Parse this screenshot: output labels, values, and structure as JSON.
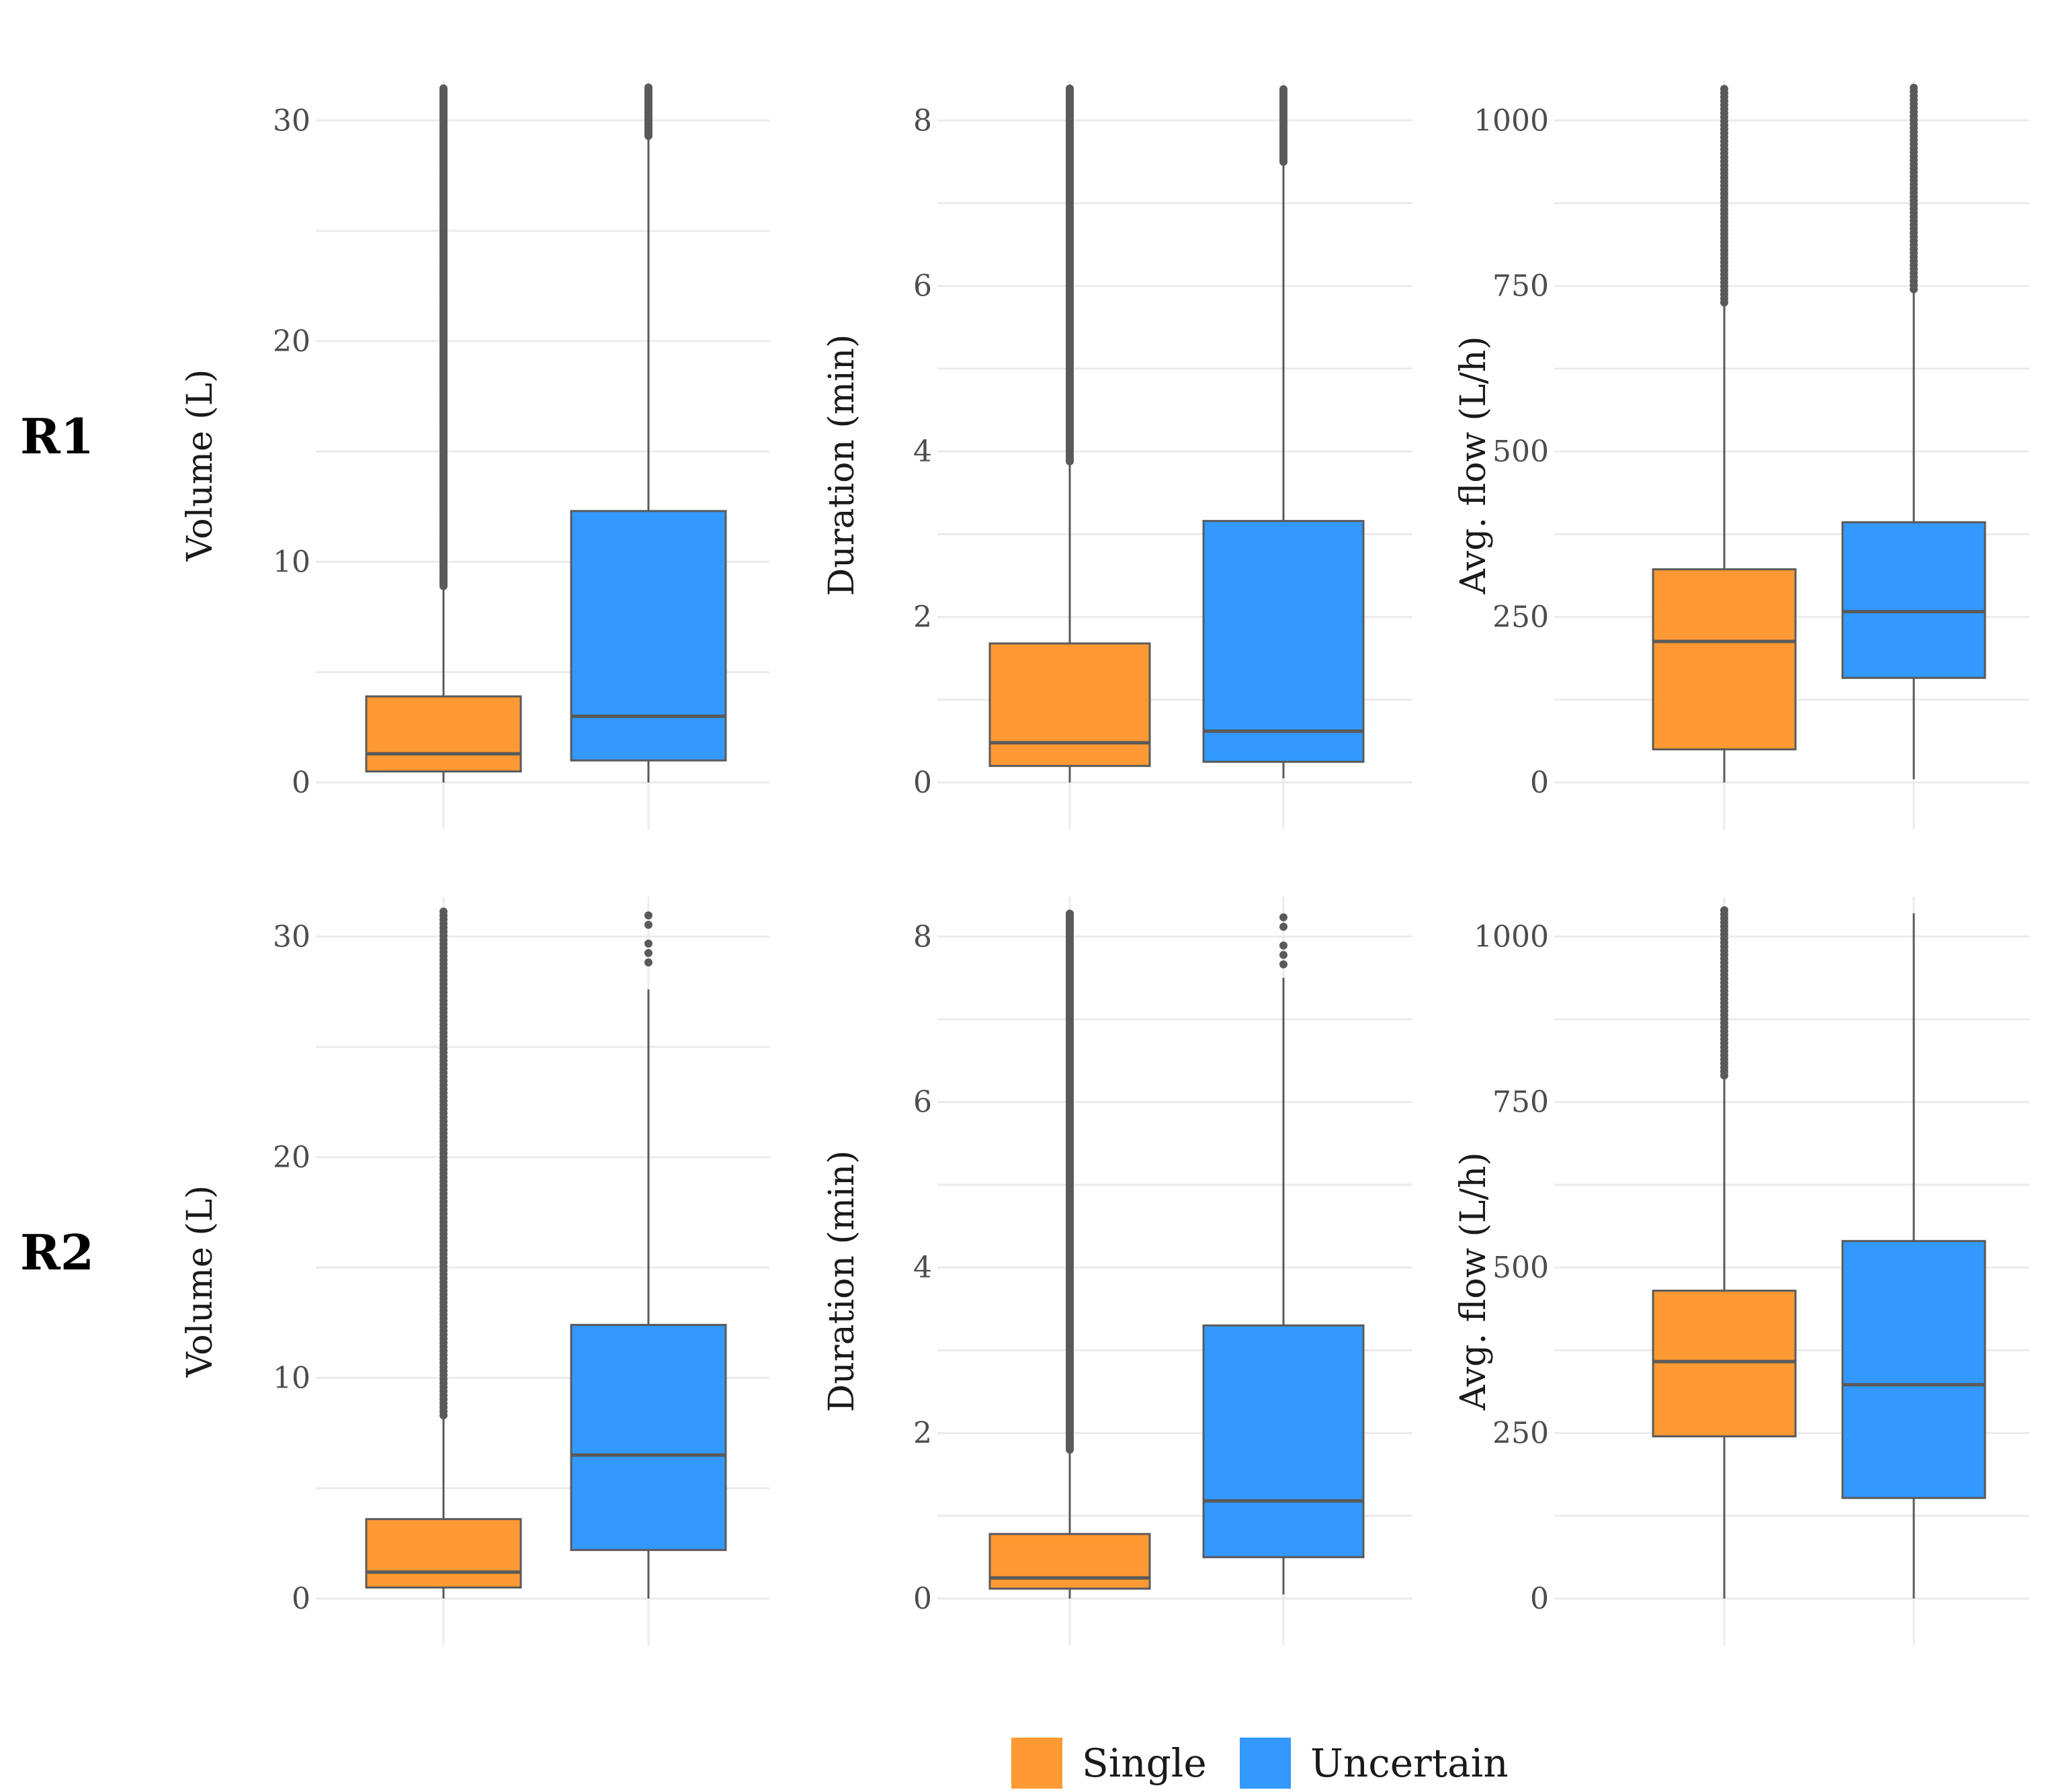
{
  "chart_data": {
    "type": "box",
    "row_labels": [
      "R1",
      "R2"
    ],
    "groups": [
      "Single",
      "Uncertain"
    ],
    "colors": {
      "Single": "#ff9933",
      "Uncertain": "#3399ff"
    },
    "legend": {
      "position": "bottom-center",
      "entries": [
        {
          "name": "Single",
          "color": "#ff9933"
        },
        {
          "name": "Uncertain",
          "color": "#3399ff"
        }
      ]
    },
    "panels": [
      {
        "row": "R1",
        "ylabel": "Volume (L)",
        "ylim": [
          0,
          31.5
        ],
        "ticks": [
          0,
          10,
          20,
          30
        ],
        "boxes": [
          {
            "group": "Single",
            "lower_whisker": 0,
            "q1": 0.5,
            "median": 1.3,
            "q3": 3.9,
            "upper_whisker": 8.9,
            "outliers_from": 8.9,
            "outliers_to": 31.5,
            "outlier_density": "dense"
          },
          {
            "group": "Uncertain",
            "lower_whisker": 0,
            "q1": 1.0,
            "median": 3.0,
            "q3": 12.3,
            "upper_whisker": 29.3,
            "outliers_from": 29.3,
            "outliers_to": 31.5,
            "outlier_density": "dense"
          }
        ]
      },
      {
        "row": "R1",
        "ylabel": "Duration (min)",
        "ylim": [
          0,
          8.4
        ],
        "ticks": [
          0,
          2,
          4,
          6,
          8
        ],
        "boxes": [
          {
            "group": "Single",
            "lower_whisker": 0,
            "q1": 0.2,
            "median": 0.48,
            "q3": 1.68,
            "upper_whisker": 3.88,
            "outliers_from": 3.88,
            "outliers_to": 8.4,
            "outlier_density": "dense"
          },
          {
            "group": "Uncertain",
            "lower_whisker": 0.05,
            "q1": 0.25,
            "median": 0.62,
            "q3": 3.16,
            "upper_whisker": 7.5,
            "outliers_from": 7.5,
            "outliers_to": 8.4,
            "outlier_density": "dense"
          }
        ]
      },
      {
        "row": "R1",
        "ylabel": "Avg. flow (L/h)",
        "ylim": [
          0,
          1050
        ],
        "ticks": [
          0,
          250,
          500,
          750,
          1000
        ],
        "boxes": [
          {
            "group": "Single",
            "lower_whisker": 0,
            "q1": 50,
            "median": 213,
            "q3": 322,
            "upper_whisker": 725,
            "outliers_from": 725,
            "outliers_to": 1050,
            "outlier_density": "medium"
          },
          {
            "group": "Uncertain",
            "lower_whisker": 5,
            "q1": 158,
            "median": 258,
            "q3": 393,
            "upper_whisker": 745,
            "outliers_from": 745,
            "outliers_to": 1050,
            "outlier_density": "medium"
          }
        ]
      },
      {
        "row": "R2",
        "ylabel": "Volume (L)",
        "ylim": [
          0,
          31.5
        ],
        "ticks": [
          0,
          10,
          20,
          30
        ],
        "boxes": [
          {
            "group": "Single",
            "lower_whisker": 0,
            "q1": 0.5,
            "median": 1.2,
            "q3": 3.6,
            "upper_whisker": 8.3,
            "outliers_from": 8.3,
            "outliers_to": 31.2,
            "outlier_density": "medium"
          },
          {
            "group": "Uncertain",
            "lower_whisker": 0,
            "q1": 2.2,
            "median": 6.5,
            "q3": 12.4,
            "upper_whisker": 27.6,
            "outliers_from": 28.4,
            "outliers_to": 31.2,
            "outlier_density": "sparse"
          }
        ]
      },
      {
        "row": "R2",
        "ylabel": "Duration (min)",
        "ylim": [
          0,
          8.4
        ],
        "ticks": [
          0,
          2,
          4,
          6,
          8
        ],
        "boxes": [
          {
            "group": "Single",
            "lower_whisker": 0,
            "q1": 0.12,
            "median": 0.25,
            "q3": 0.78,
            "upper_whisker": 1.8,
            "outliers_from": 1.8,
            "outliers_to": 8.3,
            "outlier_density": "dense"
          },
          {
            "group": "Uncertain",
            "lower_whisker": 0.05,
            "q1": 0.5,
            "median": 1.18,
            "q3": 3.3,
            "upper_whisker": 7.5,
            "outliers_from": 7.55,
            "outliers_to": 8.35,
            "outlier_density": "sparse"
          }
        ]
      },
      {
        "row": "R2",
        "ylabel": "Avg. flow (L/h)",
        "ylim": [
          0,
          1050
        ],
        "ticks": [
          0,
          250,
          500,
          750,
          1000
        ],
        "boxes": [
          {
            "group": "Single",
            "lower_whisker": 0,
            "q1": 245,
            "median": 358,
            "q3": 465,
            "upper_whisker": 790,
            "outliers_from": 790,
            "outliers_to": 1045,
            "outlier_density": "medium"
          },
          {
            "group": "Uncertain",
            "lower_whisker": 0,
            "q1": 152,
            "median": 323,
            "q3": 540,
            "upper_whisker": 1035,
            "outliers_from": null,
            "outliers_to": null,
            "outlier_density": "none"
          }
        ]
      }
    ]
  }
}
